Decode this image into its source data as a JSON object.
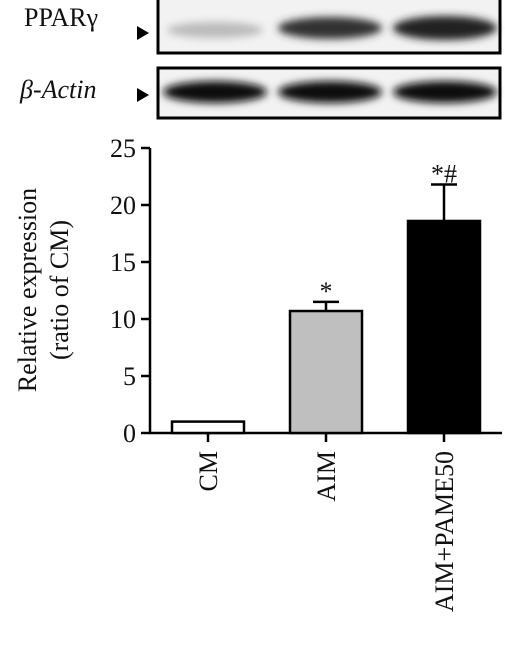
{
  "chart_data": {
    "type": "bar",
    "blot_labels": [
      "PPARγ",
      "β-Actin"
    ],
    "ylabel": [
      "Relative expression",
      "(ratio of CM)"
    ],
    "categories": [
      "CM",
      "AIM",
      "AIM+PAME50"
    ],
    "values": [
      1.0,
      10.7,
      18.6
    ],
    "errors": [
      null,
      0.8,
      3.2
    ],
    "annotations": [
      null,
      "*",
      "*#"
    ],
    "colors": [
      "#ffffff",
      "#bfbfbf",
      "#000000"
    ],
    "ylim": [
      0,
      25
    ],
    "yticks": [
      0,
      5,
      10,
      15,
      20,
      25
    ]
  }
}
